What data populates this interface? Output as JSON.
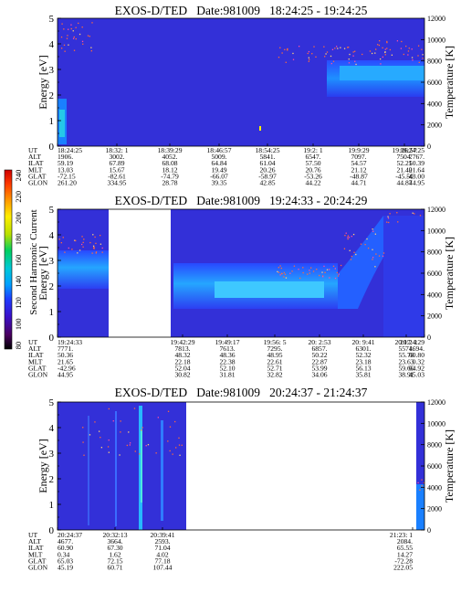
{
  "colorbar": {
    "label": "Second Harmonic Current",
    "ticks": [
      "240",
      "220",
      "200",
      "180",
      "160",
      "140",
      "120",
      "100",
      "80"
    ]
  },
  "row_labels": [
    "UT",
    "ALT",
    "ILAT",
    "MLT",
    "GLAT",
    "GLON"
  ],
  "chart_data": [
    {
      "type": "heatmap",
      "title": "EXOS-D/TED   Date:981009   18:24:25 - 19:24:25",
      "ylabel": "Energy [eV]",
      "y2label": "Temperature [K]",
      "yticks": [
        "0",
        "1",
        "2",
        "3",
        "4",
        "5"
      ],
      "y2ticks": [
        "0",
        "2000",
        "4000",
        "6000",
        "8000",
        "10000",
        "12000"
      ],
      "ylim": [
        0,
        5
      ],
      "y2lim": [
        0,
        12000
      ],
      "columns": [
        {
          "UT": "18:24:25",
          "ALT": "1906.",
          "ILAT": "59.19",
          "MLT": "13.03",
          "GLAT": "-72.15",
          "GLON": "261.20"
        },
        {
          "UT": "18:32: 1",
          "ALT": "3002.",
          "ILAT": "67.89",
          "MLT": "15.67",
          "GLAT": "-82.61",
          "GLON": "334.95"
        },
        {
          "UT": "18:39:29",
          "ALT": "4052.",
          "ILAT": "68.08",
          "MLT": "18.12",
          "GLAT": "-74.79",
          "GLON": "28.78"
        },
        {
          "UT": "18:46:57",
          "ALT": "5009.",
          "ILAT": "64.84",
          "MLT": "19.49",
          "GLAT": "-66.07",
          "GLON": "39.35"
        },
        {
          "UT": "18:54:25",
          "ALT": "5841.",
          "ILAT": "61.04",
          "MLT": "20.26",
          "GLAT": "-58.97",
          "GLON": "42.85"
        },
        {
          "UT": "19:2: 1",
          "ALT": "6547.",
          "ILAT": "57.50",
          "MLT": "20.76",
          "GLAT": "-53.26",
          "GLON": "44.22"
        },
        {
          "UT": "19:9:29",
          "ALT": "7097.",
          "ILAT": "54.57",
          "MLT": "21.12",
          "GLAT": "-48.87",
          "GLON": "44.71"
        },
        {
          "UT": "19:16:57",
          "ALT": "7504.",
          "ILAT": "52.21",
          "MLT": "21.40",
          "GLAT": "-45.50",
          "GLON": "44.87"
        },
        {
          "UT": "19:24:25",
          "ALT": "7767.",
          "ILAT": "50.39",
          "MLT": "21.64",
          "GLAT": "-43.00",
          "GLON": "44.95"
        }
      ]
    },
    {
      "type": "heatmap",
      "title": "EXOS-D/TED   Date:981009   19:24:33 - 20:24:29",
      "ylabel": "Energy [eV]",
      "y2label": "Temperature [K]",
      "yticks": [
        "0",
        "1",
        "2",
        "3",
        "4",
        "5"
      ],
      "y2ticks": [
        "0",
        "2000",
        "4000",
        "6000",
        "8000",
        "10000",
        "12000"
      ],
      "ylim": [
        0,
        5
      ],
      "y2lim": [
        0,
        12000
      ],
      "columns": [
        {
          "UT": "19:24:33",
          "ALT": "7771.",
          "ILAT": "50.36",
          "MLT": "21.65",
          "GLAT": "-42.96",
          "GLON": "44.95"
        },
        {
          "UT": "19:42:29",
          "ALT": "7813.",
          "ILAT": "48.32",
          "MLT": "22.18",
          "GLAT": "52.04",
          "GLON": "30.82"
        },
        {
          "UT": "19:49:17",
          "ALT": "7613.",
          "ILAT": "48.36",
          "MLT": "22.38",
          "GLAT": "52.10",
          "GLON": "31.81"
        },
        {
          "UT": "19:56: 5",
          "ALT": "7295.",
          "ILAT": "48.95",
          "MLT": "22.61",
          "GLAT": "52.71",
          "GLON": "32.82"
        },
        {
          "UT": "20: 2:53",
          "ALT": "6857.",
          "ILAT": "50.22",
          "MLT": "22.87",
          "GLAT": "53.99",
          "GLON": "34.06"
        },
        {
          "UT": "20: 9:41",
          "ALT": "6301.",
          "ILAT": "52.32",
          "MLT": "23.18",
          "GLAT": "56.13",
          "GLON": "35.81"
        },
        {
          "UT": "20:17: 1",
          "ALT": "5571.",
          "ILAT": "55.78",
          "MLT": "23.63",
          "GLAT": "59.66",
          "GLON": "38.91"
        },
        {
          "UT": "20:24:29",
          "ALT": "4694.",
          "ILAT": "60.80",
          "MLT": "0.32",
          "GLAT": "64.92",
          "GLON": "45.03"
        }
      ]
    },
    {
      "type": "heatmap",
      "title": "EXOS-D/TED   Date:981009   20:24:37 - 21:24:37",
      "ylabel": "Energy [eV]",
      "y2label": "Temperature [K]",
      "yticks": [
        "0",
        "1",
        "2",
        "3",
        "4",
        "5"
      ],
      "y2ticks": [
        "0",
        "2000",
        "4000",
        "6000",
        "8000",
        "10000",
        "12000"
      ],
      "ylim": [
        0,
        5
      ],
      "y2lim": [
        0,
        12000
      ],
      "columns": [
        {
          "UT": "20:24:37",
          "ALT": "4677.",
          "ILAT": "60.90",
          "MLT": "0.34",
          "GLAT": "65.03",
          "GLON": "45.19"
        },
        {
          "UT": "20:32:13",
          "ALT": "3664.",
          "ILAT": "67.30",
          "MLT": "1.62",
          "GLAT": "72.15",
          "GLON": "60.71"
        },
        {
          "UT": "20:39:41",
          "ALT": "2593.",
          "ILAT": "71.04",
          "MLT": "4.02",
          "GLAT": "77.18",
          "GLON": "107.44"
        },
        {
          "UT": "21:23: 1",
          "ALT": "2084.",
          "ILAT": "65.55",
          "MLT": "14.27",
          "GLAT": "-72.28",
          "GLON": "222.05"
        }
      ]
    }
  ]
}
